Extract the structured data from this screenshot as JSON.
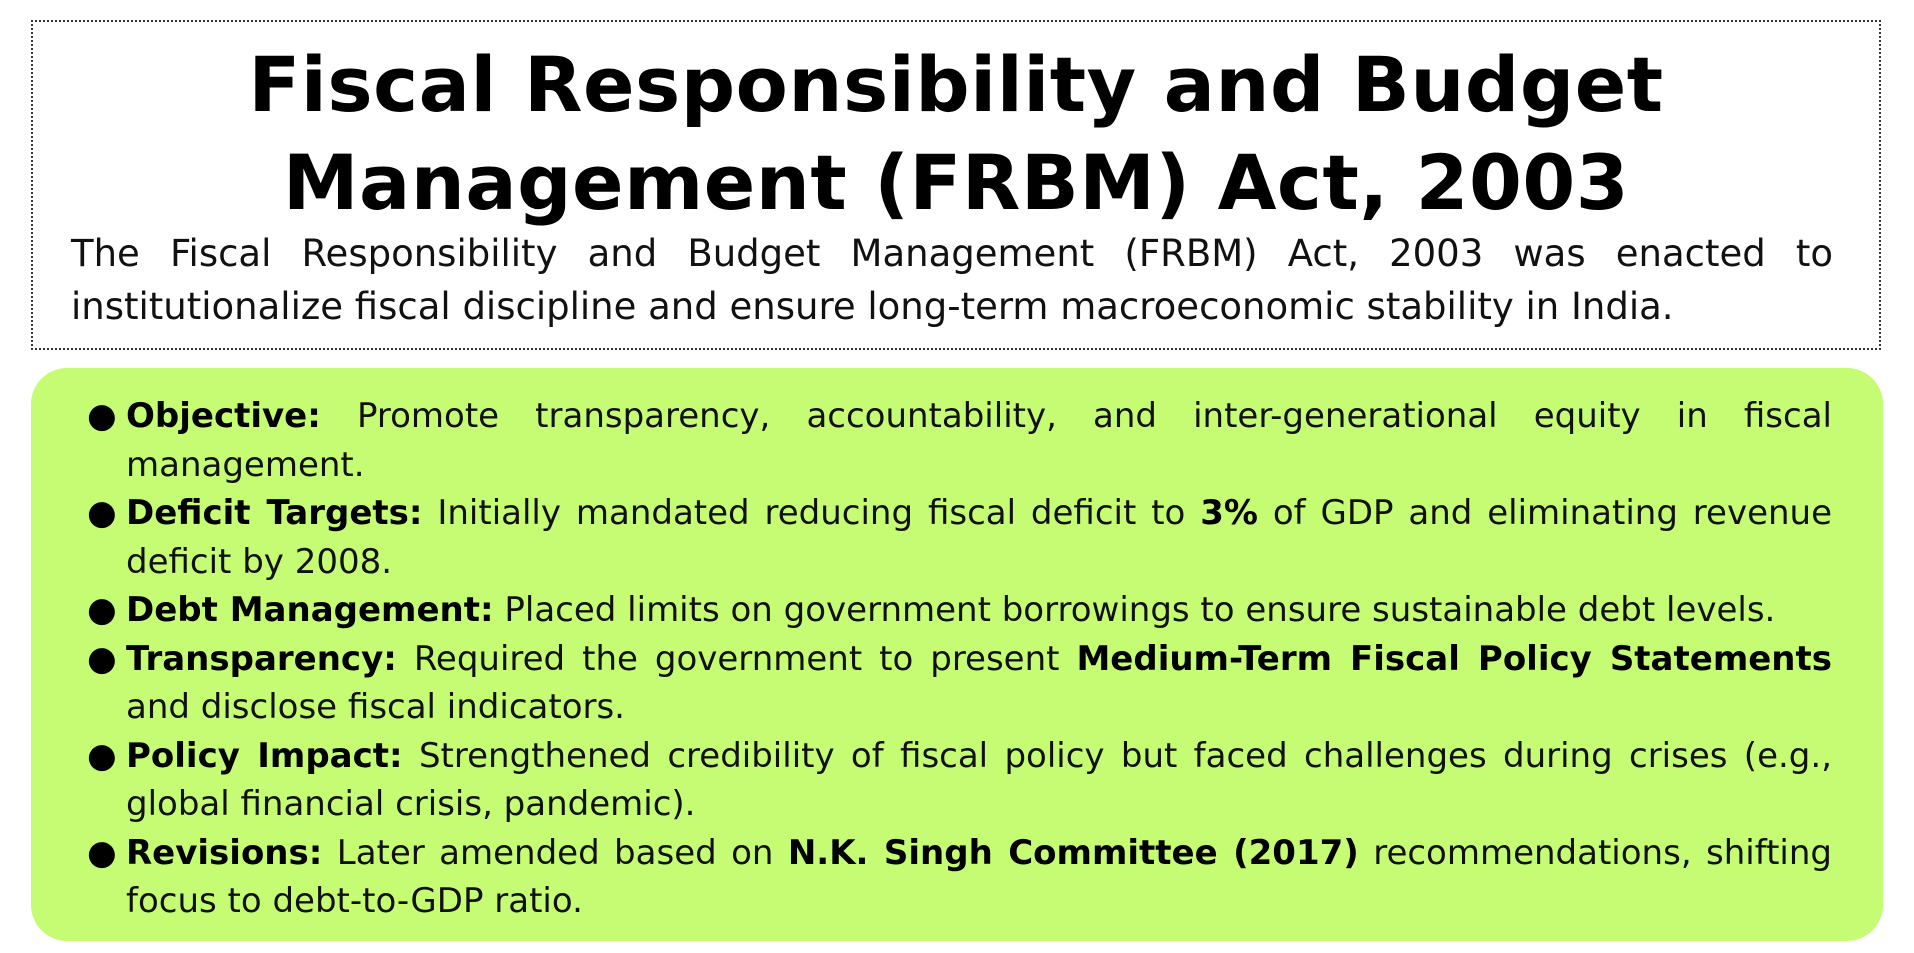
{
  "title": "Fiscal Responsibility and Budget Management (FRBM) Act, 2003",
  "intro": "The Fiscal Responsibility and Budget Management (FRBM) Act, 2003 was enacted to institutionalize fiscal discipline and ensure long-term macroeconomic stability in India.",
  "colors": {
    "panel_background": "#c5fc73",
    "header_border": "#333333"
  },
  "bullet_icon": "filled-circle-bullet",
  "points": [
    {
      "label": "Objective:",
      "t1": " Promote transparency, accountability, and inter-generational equity in fiscal management."
    },
    {
      "label": "Deficit Targets:",
      "t1": " Initially mandated reducing fiscal deficit to ",
      "em1": "3%",
      "t2": " of GDP and eliminating revenue deficit by 2008."
    },
    {
      "label": "Debt Management:",
      "t1": " Placed limits on government borrowings to ensure sustainable debt levels."
    },
    {
      "label": "Transparency:",
      "t1": " Required the government to present ",
      "em1": "Medium-Term Fiscal Policy Statements",
      "t2": " and disclose fiscal indicators."
    },
    {
      "label": "Policy Impact:",
      "t1": " Strengthened credibility of fiscal policy but faced challenges during crises (e.g., global financial crisis, pandemic)."
    },
    {
      "label": "Revisions:",
      "t1": " Later amended based on ",
      "em1": "N.K. Singh Committee (2017)",
      "t2": " recommendations, shifting focus to debt-to-GDP ratio."
    }
  ]
}
